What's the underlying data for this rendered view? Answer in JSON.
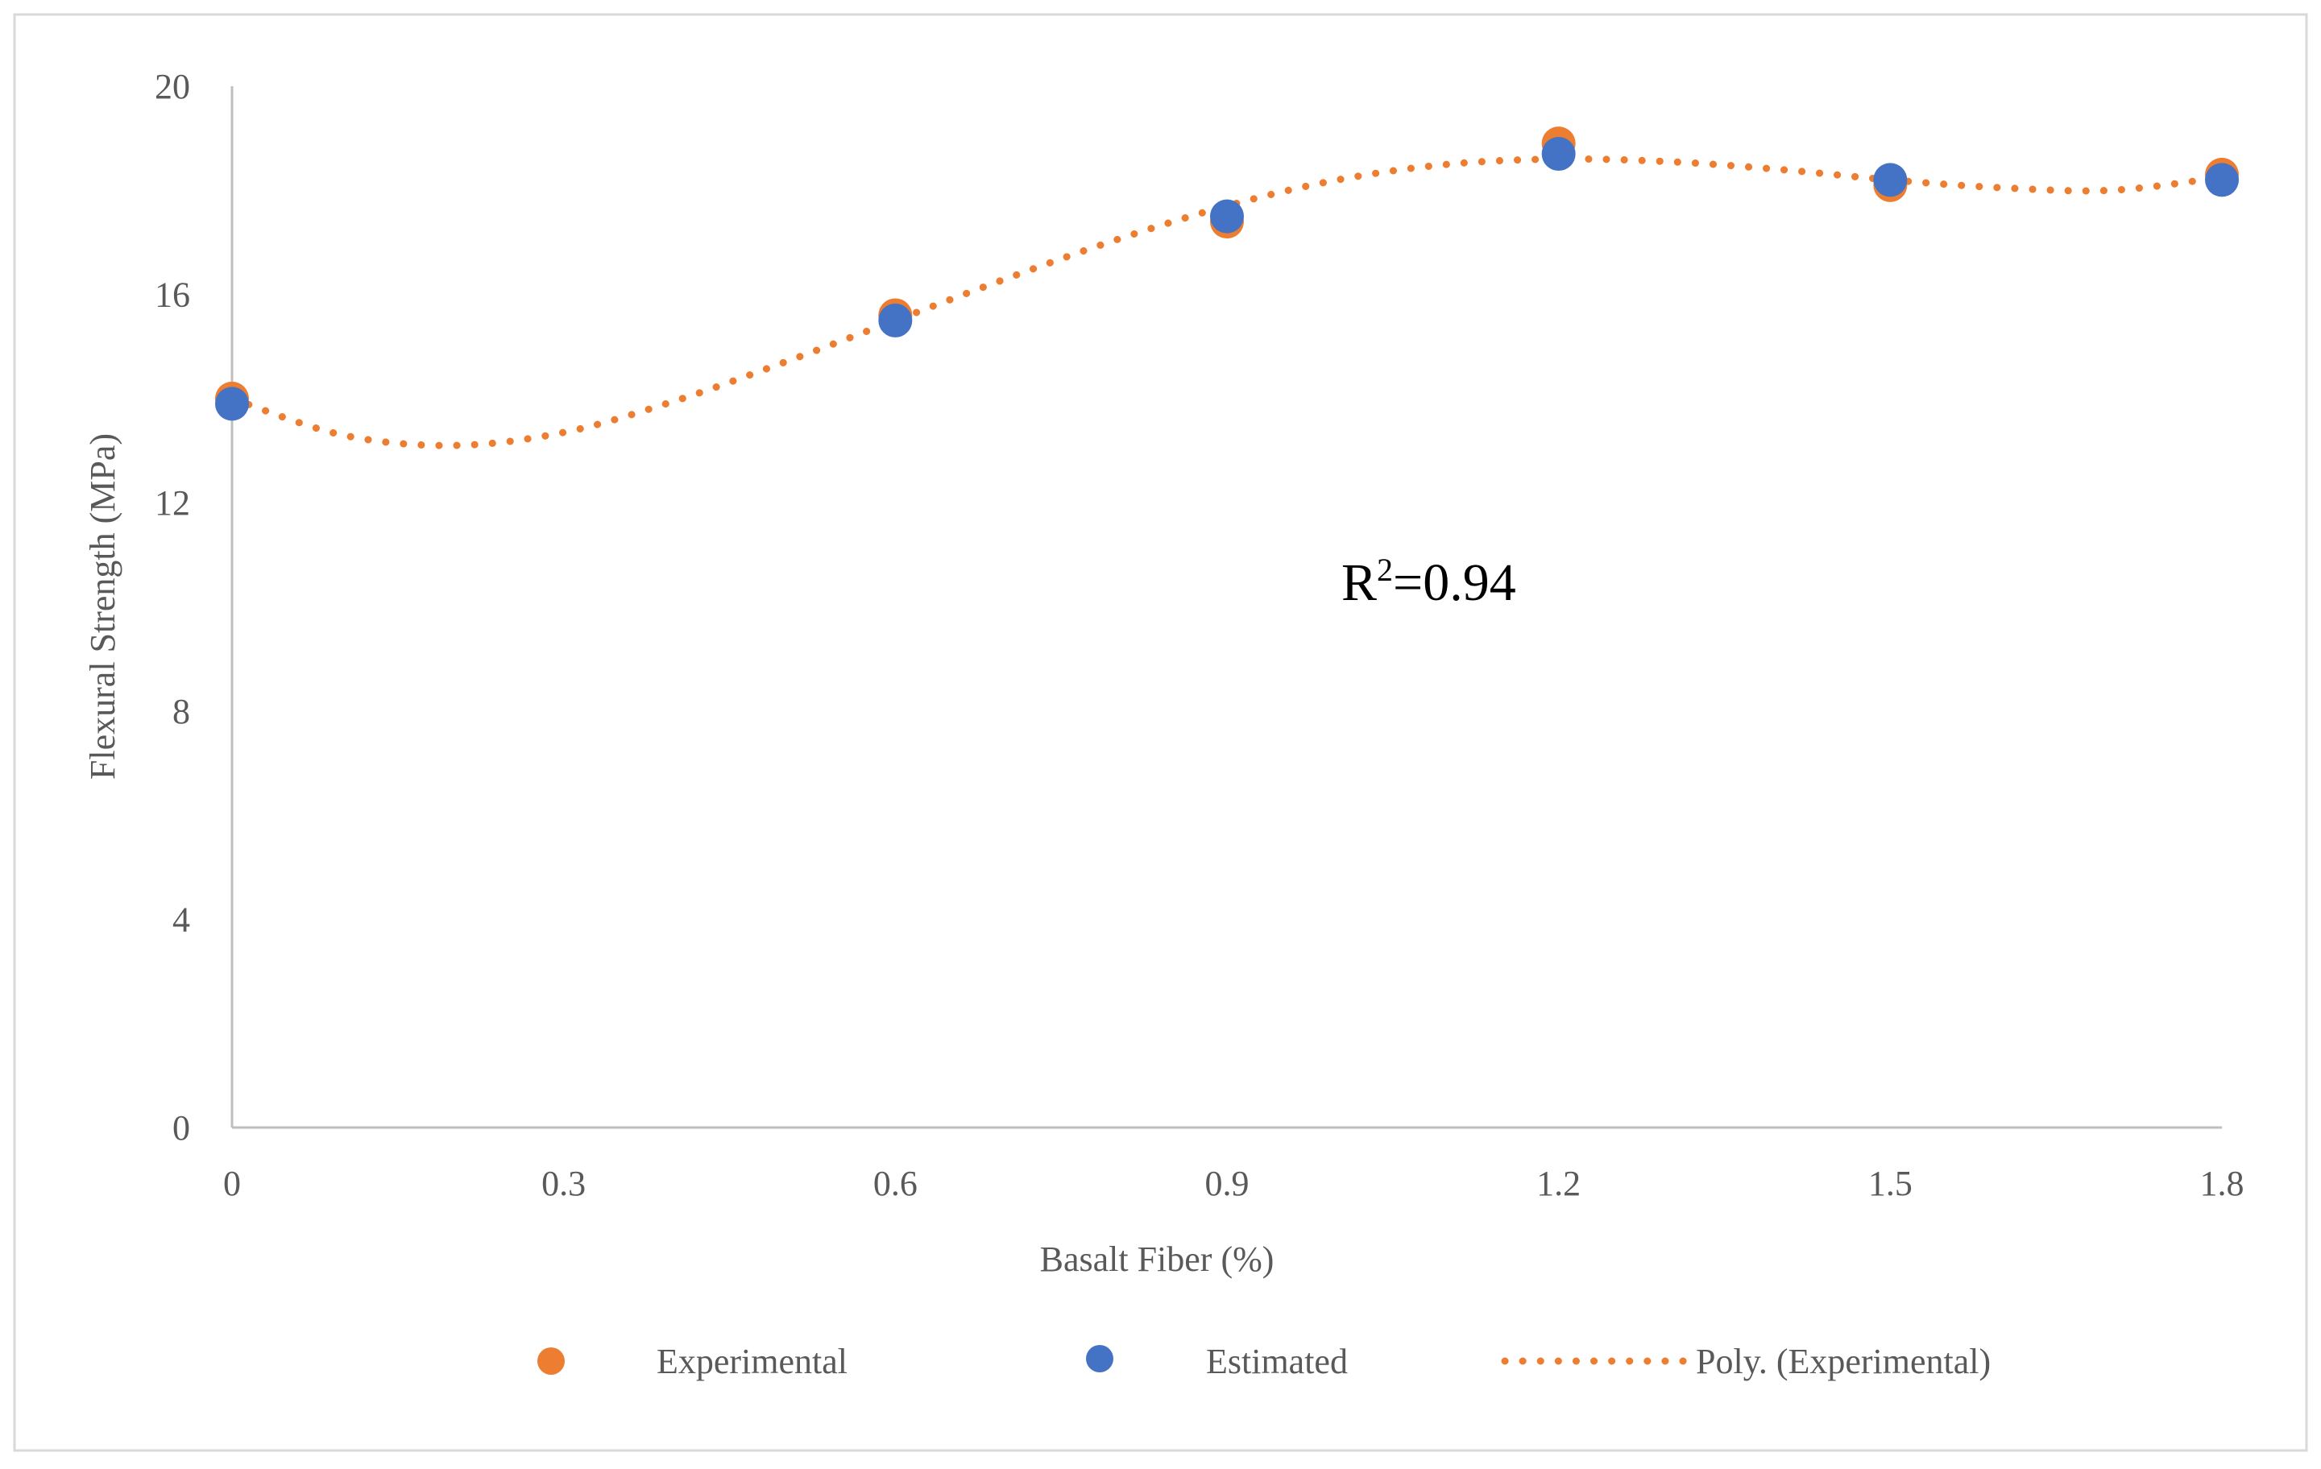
{
  "chart_data": {
    "type": "scatter",
    "title": "",
    "xlabel": "Basalt Fiber (%)",
    "ylabel": "Flexural Strength (MPa)",
    "xlim": [
      0,
      1.8
    ],
    "ylim": [
      0,
      20
    ],
    "x_ticks": [
      "0",
      "0.3",
      "0.6",
      "0.9",
      "1.2",
      "1.5",
      "1.8"
    ],
    "y_ticks": [
      "0",
      "4",
      "8",
      "12",
      "16",
      "20"
    ],
    "x_tick_values": [
      0,
      0.3,
      0.6,
      0.9,
      1.2,
      1.5,
      1.8
    ],
    "y_tick_values": [
      0,
      4,
      8,
      12,
      16,
      20
    ],
    "grid": false,
    "annotation": {
      "prefix": "R",
      "superscript": "2",
      "suffix": "=0.94"
    },
    "series": [
      {
        "name": "Experimental",
        "kind": "marker",
        "color": "#ED7D31",
        "x": [
          0,
          0.6,
          0.9,
          1.2,
          1.5,
          1.8
        ],
        "y": [
          14.0,
          15.6,
          17.4,
          18.9,
          18.1,
          18.3
        ]
      },
      {
        "name": "Estimated",
        "kind": "marker",
        "color": "#4472C4",
        "x": [
          0,
          0.6,
          0.9,
          1.2,
          1.5,
          1.8
        ],
        "y": [
          13.9,
          15.5,
          17.5,
          18.7,
          18.2,
          18.2
        ]
      },
      {
        "name": "Poly. (Experimental)",
        "kind": "trendline",
        "color": "#ED7D31",
        "x": [
          0,
          0.1,
          0.2,
          0.3,
          0.4,
          0.5,
          0.6,
          0.7,
          0.8,
          0.9,
          1.0,
          1.1,
          1.2,
          1.3,
          1.4,
          1.5,
          1.6,
          1.7,
          1.8
        ],
        "y": [
          14.0,
          13.3,
          13.1,
          13.35,
          13.95,
          14.7,
          15.5,
          16.3,
          17.05,
          17.7,
          18.2,
          18.5,
          18.6,
          18.55,
          18.4,
          18.2,
          18.05,
          18.0,
          18.25
        ]
      }
    ],
    "legend_position": "bottom"
  }
}
